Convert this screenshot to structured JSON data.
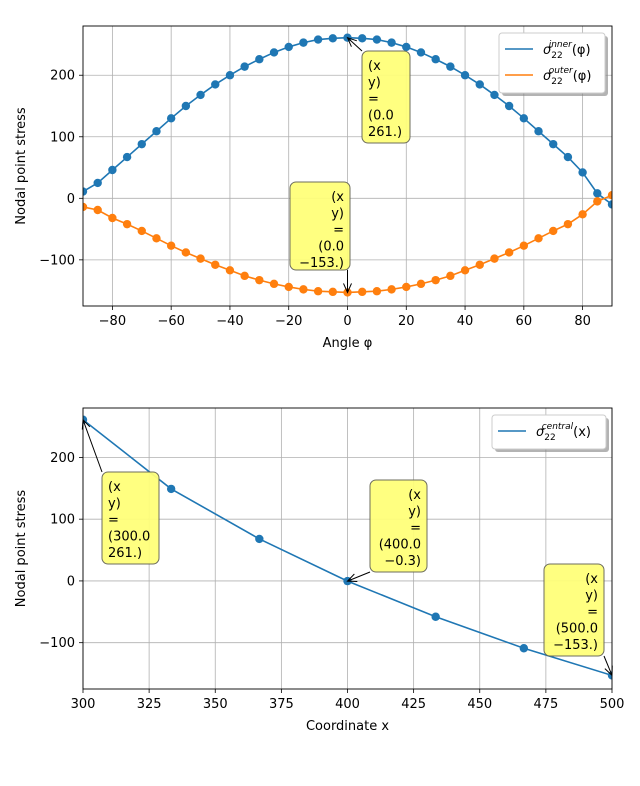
{
  "chart_data": [
    {
      "type": "line",
      "xlabel": "Angle φ",
      "ylabel": "Nodal point stress",
      "xlim": [
        -90,
        90
      ],
      "ylim": [
        -175,
        280
      ],
      "xticks": [
        -80,
        -60,
        -40,
        -20,
        0,
        20,
        40,
        60,
        80
      ],
      "yticks": [
        -100,
        0,
        100,
        200
      ],
      "xtick_labels": [
        "−80",
        "−60",
        "−40",
        "−20",
        "0",
        "20",
        "40",
        "60",
        "80"
      ],
      "ytick_labels": [
        "−100",
        "0",
        "100",
        "200"
      ],
      "grid": true,
      "legend": "upper right",
      "series": [
        {
          "name": "σ22inner(φ)",
          "legend_base": "σ",
          "legend_sub": "22",
          "legend_sup": "inner",
          "legend_arg": "(φ)",
          "color": "#1f77b4",
          "x": [
            -90,
            -85,
            -80,
            -75,
            -70,
            -65,
            -60,
            -55,
            -50,
            -45,
            -40,
            -35,
            -30,
            -25,
            -20,
            -15,
            -10,
            -5,
            0,
            5,
            10,
            15,
            20,
            25,
            30,
            35,
            40,
            45,
            50,
            55,
            60,
            65,
            70,
            75,
            80,
            85,
            90
          ],
          "y": [
            11,
            25,
            46,
            67,
            88,
            109,
            130,
            150,
            168,
            185,
            200,
            214,
            226,
            237,
            246,
            253,
            258,
            260,
            261,
            260,
            258,
            253,
            246,
            237,
            226,
            214,
            200,
            185,
            168,
            150,
            130,
            109,
            88,
            67,
            42,
            8,
            -10
          ]
        },
        {
          "name": "σ22outer(φ)",
          "legend_base": "σ",
          "legend_sub": "22",
          "legend_sup": "outer",
          "legend_arg": "(φ)",
          "color": "#ff7f0e",
          "x": [
            -90,
            -85,
            -80,
            -75,
            -70,
            -65,
            -60,
            -55,
            -50,
            -45,
            -40,
            -35,
            -30,
            -25,
            -20,
            -15,
            -10,
            -5,
            0,
            5,
            10,
            15,
            20,
            25,
            30,
            35,
            40,
            45,
            50,
            55,
            60,
            65,
            70,
            75,
            80,
            85,
            90
          ],
          "y": [
            -14,
            -19,
            -32,
            -42,
            -53,
            -65,
            -77,
            -88,
            -98,
            -108,
            -117,
            -126,
            -133,
            -139,
            -144,
            -148,
            -151,
            -152,
            -153,
            -152,
            -151,
            -148,
            -144,
            -139,
            -133,
            -126,
            -117,
            -108,
            -98,
            -88,
            -77,
            -65,
            -53,
            -42,
            -26,
            -5,
            5
          ]
        }
      ],
      "annotations": [
        {
          "lines": [
            "(x",
            "y)",
            "=",
            "(0.0",
            "261.)"
          ],
          "align": "left",
          "x": 0,
          "y": 261
        },
        {
          "lines": [
            "(x",
            "y)",
            "=",
            "(0.0",
            "−153.)"
          ],
          "align": "right",
          "x": 0,
          "y": -153
        }
      ]
    },
    {
      "type": "line",
      "xlabel": "Coordinate x",
      "ylabel": "Nodal point stress",
      "xlim": [
        300,
        500
      ],
      "ylim": [
        -175,
        280
      ],
      "xticks": [
        300,
        325,
        350,
        375,
        400,
        425,
        450,
        475,
        500
      ],
      "yticks": [
        -100,
        0,
        100,
        200
      ],
      "xtick_labels": [
        "300",
        "325",
        "350",
        "375",
        "400",
        "425",
        "450",
        "475",
        "500"
      ],
      "ytick_labels": [
        "−100",
        "0",
        "100",
        "200"
      ],
      "grid": true,
      "legend": "upper right",
      "series": [
        {
          "name": "σ22central(x)",
          "legend_base": "σ",
          "legend_sub": "22",
          "legend_sup": "central",
          "legend_arg": "(x)",
          "color": "#1f77b4",
          "x": [
            300,
            333.33,
            366.67,
            400,
            433.33,
            466.67,
            500
          ],
          "y": [
            261,
            149,
            68,
            -0.3,
            -58,
            -109,
            -153
          ]
        }
      ],
      "annotations": [
        {
          "lines": [
            "(x",
            "y)",
            "=",
            "(300.0",
            "261.)"
          ],
          "align": "left",
          "x": 300,
          "y": 261
        },
        {
          "lines": [
            "(x",
            "y)",
            "=",
            "(400.0",
            "−0.3)"
          ],
          "align": "right",
          "x": 400,
          "y": -0.3
        },
        {
          "lines": [
            "(x",
            "y)",
            "=",
            "(500.0",
            "−153.)"
          ],
          "align": "right",
          "x": 500,
          "y": -153
        }
      ]
    }
  ]
}
